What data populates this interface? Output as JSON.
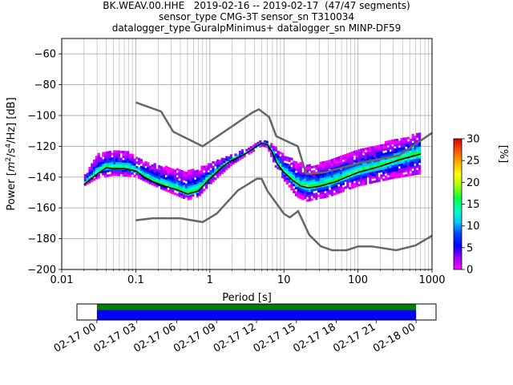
{
  "title_lines": [
    "BK.WEAV.00.HHE   2019-02-16 -- 2019-02-17  (47/47 segments)",
    "sensor_type CMG-3T sensor_sn T310034",
    "datalogger_type GuralpMinimus+ datalogger_sn MINP-DF59"
  ],
  "chart_data": [
    {
      "type": "heatmap",
      "subtype": "probabilistic power spectral density",
      "xlabel": "Period [s]",
      "ylabel_parts": {
        "pre": "Power [",
        "m": "m",
        "exp2": "2",
        "mid": "/s",
        "exp4": "4",
        "post": "/Hz] [dB]"
      },
      "xscale": "log",
      "xlim": [
        0.01,
        1000
      ],
      "ylim": [
        -200,
        -50
      ],
      "x_ticks": [
        {
          "value": 0.01,
          "label": "0.01"
        },
        {
          "value": 0.1,
          "label": "0.1"
        },
        {
          "value": 1,
          "label": "1"
        },
        {
          "value": 10,
          "label": "10"
        },
        {
          "value": 100,
          "label": "100"
        },
        {
          "value": 1000,
          "label": "1000"
        }
      ],
      "y_ticks": [
        {
          "value": -60,
          "label": "−60"
        },
        {
          "value": -80,
          "label": "−80"
        },
        {
          "value": -100,
          "label": "−100"
        },
        {
          "value": -120,
          "label": "−120"
        },
        {
          "value": -140,
          "label": "−140"
        },
        {
          "value": -160,
          "label": "−160"
        },
        {
          "value": -180,
          "label": "−180"
        },
        {
          "value": -200,
          "label": "−200"
        }
      ],
      "grid": true,
      "colorbar": {
        "label": "[%]",
        "range": [
          0,
          30
        ],
        "ticks": [
          {
            "value": 0,
            "label": "0"
          },
          {
            "value": 5,
            "label": "5"
          },
          {
            "value": 10,
            "label": "10"
          },
          {
            "value": 15,
            "label": "15"
          },
          {
            "value": 20,
            "label": "20"
          },
          {
            "value": 25,
            "label": "25"
          },
          {
            "value": 30,
            "label": "30"
          }
        ],
        "colors": [
          "#ff00ff",
          "#9a00ff",
          "#0000ff",
          "#0044ff",
          "#00c8ff",
          "#00ffc0",
          "#00ff40",
          "#9cff00",
          "#ffff00",
          "#ffb000",
          "#ff5000",
          "#d00000"
        ]
      },
      "nlnm": [
        [
          0.1,
          -168
        ],
        [
          0.17,
          -166.7
        ],
        [
          0.4,
          -166.7
        ],
        [
          0.8,
          -169.2
        ],
        [
          1.24,
          -163.7
        ],
        [
          2.4,
          -148.6
        ],
        [
          4.3,
          -141.1
        ],
        [
          5,
          -141.1
        ],
        [
          6,
          -149
        ],
        [
          10,
          -163.8
        ],
        [
          12,
          -166.2
        ],
        [
          15.6,
          -162.1
        ],
        [
          21.9,
          -177.5
        ],
        [
          31.6,
          -185
        ],
        [
          45,
          -187.5
        ],
        [
          70,
          -187.5
        ],
        [
          101,
          -185
        ],
        [
          154,
          -185
        ],
        [
          328,
          -187.5
        ],
        [
          600,
          -184.4
        ],
        [
          1000,
          -178
        ]
      ],
      "nhnm": [
        [
          0.1,
          -91.5
        ],
        [
          0.22,
          -97.4
        ],
        [
          0.32,
          -110.5
        ],
        [
          0.8,
          -120
        ],
        [
          3.8,
          -97.9
        ],
        [
          4.6,
          -96
        ],
        [
          6.3,
          -101
        ],
        [
          7.9,
          -113.5
        ],
        [
          15.4,
          -120
        ],
        [
          20,
          -138
        ],
        [
          35,
          -137
        ],
        [
          100,
          -131
        ],
        [
          354.8,
          -126
        ],
        [
          1000,
          -111.3
        ]
      ],
      "mode": [
        [
          0.02,
          -145
        ],
        [
          0.025,
          -141
        ],
        [
          0.03,
          -138
        ],
        [
          0.04,
          -134
        ],
        [
          0.05,
          -134.5
        ],
        [
          0.07,
          -134.5
        ],
        [
          0.1,
          -136
        ],
        [
          0.13,
          -140
        ],
        [
          0.17,
          -143
        ],
        [
          0.25,
          -146
        ],
        [
          0.35,
          -148
        ],
        [
          0.5,
          -151
        ],
        [
          0.7,
          -149
        ],
        [
          1,
          -141
        ],
        [
          1.5,
          -133
        ],
        [
          2,
          -129
        ],
        [
          3,
          -125
        ],
        [
          4,
          -121
        ],
        [
          5,
          -118
        ],
        [
          6,
          -119
        ],
        [
          7,
          -124
        ],
        [
          8,
          -131
        ],
        [
          10,
          -137
        ],
        [
          13,
          -142
        ],
        [
          17,
          -146
        ],
        [
          22,
          -147
        ],
        [
          30,
          -146
        ],
        [
          50,
          -143
        ],
        [
          70,
          -140
        ],
        [
          100,
          -137
        ],
        [
          200,
          -133
        ],
        [
          350,
          -129
        ],
        [
          700,
          -125
        ]
      ],
      "density_lower": [
        [
          0.02,
          -146
        ],
        [
          0.03,
          -141
        ],
        [
          0.05,
          -139
        ],
        [
          0.1,
          -140
        ],
        [
          0.2,
          -147
        ],
        [
          0.5,
          -155
        ],
        [
          0.7,
          -153
        ],
        [
          1,
          -145
        ],
        [
          2,
          -132
        ],
        [
          4,
          -123
        ],
        [
          5,
          -120
        ],
        [
          6,
          -121
        ],
        [
          8,
          -135
        ],
        [
          10,
          -142
        ],
        [
          15,
          -153
        ],
        [
          20,
          -156
        ],
        [
          40,
          -153
        ],
        [
          100,
          -146
        ],
        [
          300,
          -141
        ],
        [
          700,
          -138
        ]
      ],
      "density_upper": [
        [
          0.02,
          -140
        ],
        [
          0.03,
          -126
        ],
        [
          0.05,
          -123
        ],
        [
          0.08,
          -124
        ],
        [
          0.1,
          -128
        ],
        [
          0.2,
          -133
        ],
        [
          0.5,
          -137
        ],
        [
          1,
          -132
        ],
        [
          2,
          -126
        ],
        [
          4,
          -120
        ],
        [
          5,
          -117
        ],
        [
          6,
          -117
        ],
        [
          8,
          -122
        ],
        [
          10,
          -126
        ],
        [
          15,
          -131
        ],
        [
          25,
          -133
        ],
        [
          50,
          -128
        ],
        [
          100,
          -123
        ],
        [
          200,
          -119
        ],
        [
          400,
          -115
        ],
        [
          700,
          -112
        ]
      ]
    },
    {
      "type": "timeline",
      "description": "data availability over time",
      "x_ticks": [
        "02-17 00",
        "02-17 03",
        "02-17 06",
        "02-17 09",
        "02-17 12",
        "02-17 15",
        "02-17 18",
        "02-17 21",
        "02-18 00"
      ],
      "coverage_colors": {
        "top": "#008000",
        "bottom": "#0000ff"
      },
      "coverage": [
        [
          0,
          24
        ]
      ],
      "xlim_hours": [
        -1.5,
        25.5
      ]
    }
  ]
}
